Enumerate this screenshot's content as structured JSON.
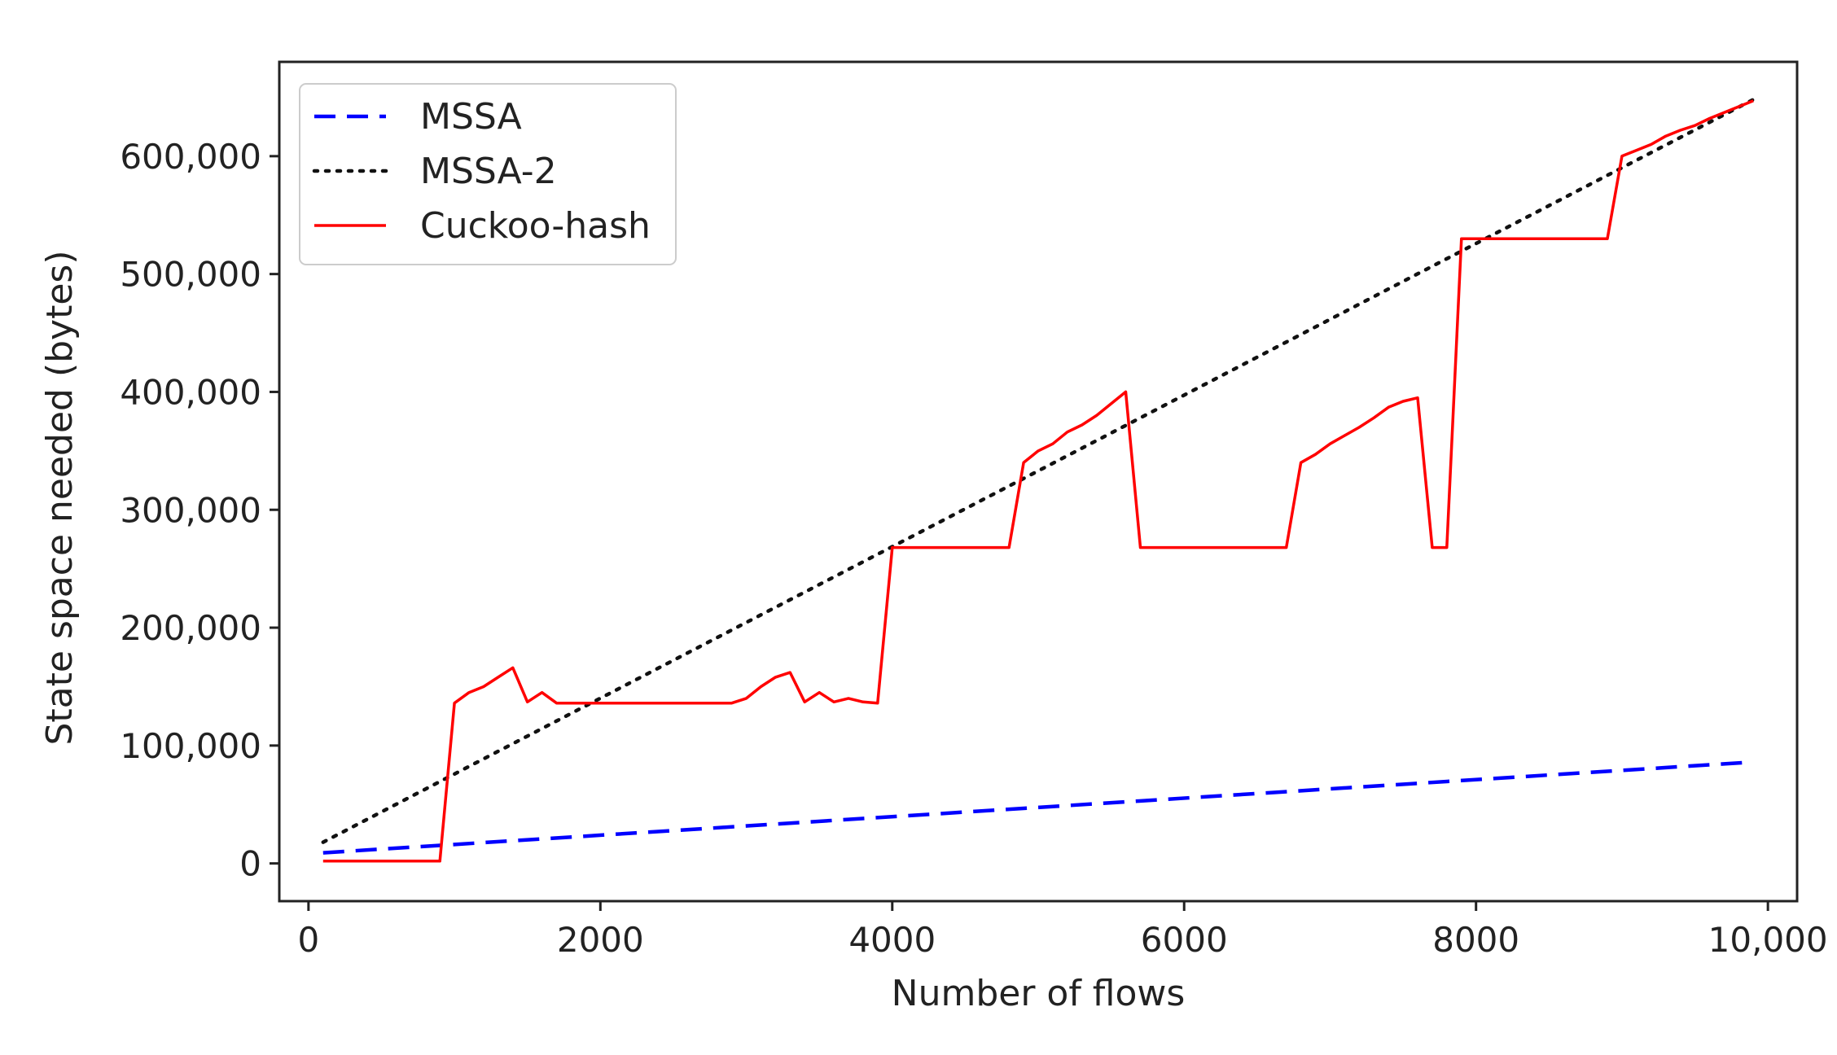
{
  "chart_data": {
    "type": "line",
    "title": "",
    "xlabel": "Number of flows",
    "ylabel": "State space needed (bytes)",
    "xlim": [
      -200,
      10200
    ],
    "ylim": [
      -32000,
      680000
    ],
    "x_ticks": [
      0,
      2000,
      4000,
      6000,
      8000,
      10000
    ],
    "x_tick_labels": [
      "0",
      "2000",
      "4000",
      "6000",
      "8000",
      "10,000"
    ],
    "y_ticks": [
      0,
      100000,
      200000,
      300000,
      400000,
      500000,
      600000
    ],
    "y_tick_labels": [
      "0",
      "100,000",
      "200,000",
      "300,000",
      "400,000",
      "500,000",
      "600,000"
    ],
    "grid": false,
    "legend_position": "top-left",
    "series": [
      {
        "name": "MSSA",
        "color": "#0000ff",
        "style": "dashed",
        "x": [
          100,
          9900
        ],
        "y": [
          9000,
          86000
        ]
      },
      {
        "name": "MSSA-2",
        "color": "#111111",
        "style": "dotted",
        "x": [
          100,
          9900
        ],
        "y": [
          18000,
          648000
        ]
      },
      {
        "name": "Cuckoo-hash",
        "color": "#ff0000",
        "style": "solid",
        "x": [
          100,
          900,
          1000,
          1100,
          1200,
          1300,
          1400,
          1500,
          1600,
          1700,
          2000,
          2900,
          3000,
          3100,
          3200,
          3300,
          3400,
          3500,
          3600,
          3700,
          3800,
          3900,
          4000,
          4800,
          4900,
          5000,
          5100,
          5200,
          5300,
          5400,
          5500,
          5600,
          5700,
          5800,
          6700,
          6800,
          6900,
          7000,
          7100,
          7200,
          7300,
          7400,
          7500,
          7600,
          7700,
          7800,
          7900,
          8900,
          9000,
          9100,
          9200,
          9300,
          9400,
          9500,
          9600,
          9700,
          9800,
          9900
        ],
        "y": [
          2000,
          2000,
          136000,
          145000,
          150000,
          158000,
          166000,
          137000,
          145000,
          136000,
          136000,
          136000,
          140000,
          150000,
          158000,
          162000,
          137000,
          145000,
          137000,
          140000,
          137000,
          136000,
          268000,
          268000,
          340000,
          350000,
          356000,
          366000,
          372000,
          380000,
          390000,
          400000,
          268000,
          268000,
          268000,
          340000,
          347000,
          356000,
          363000,
          370000,
          378000,
          387000,
          392000,
          395000,
          268000,
          268000,
          530000,
          530000,
          600000,
          605000,
          610000,
          617000,
          622000,
          626000,
          632000,
          637000,
          642000,
          647000
        ]
      }
    ]
  }
}
